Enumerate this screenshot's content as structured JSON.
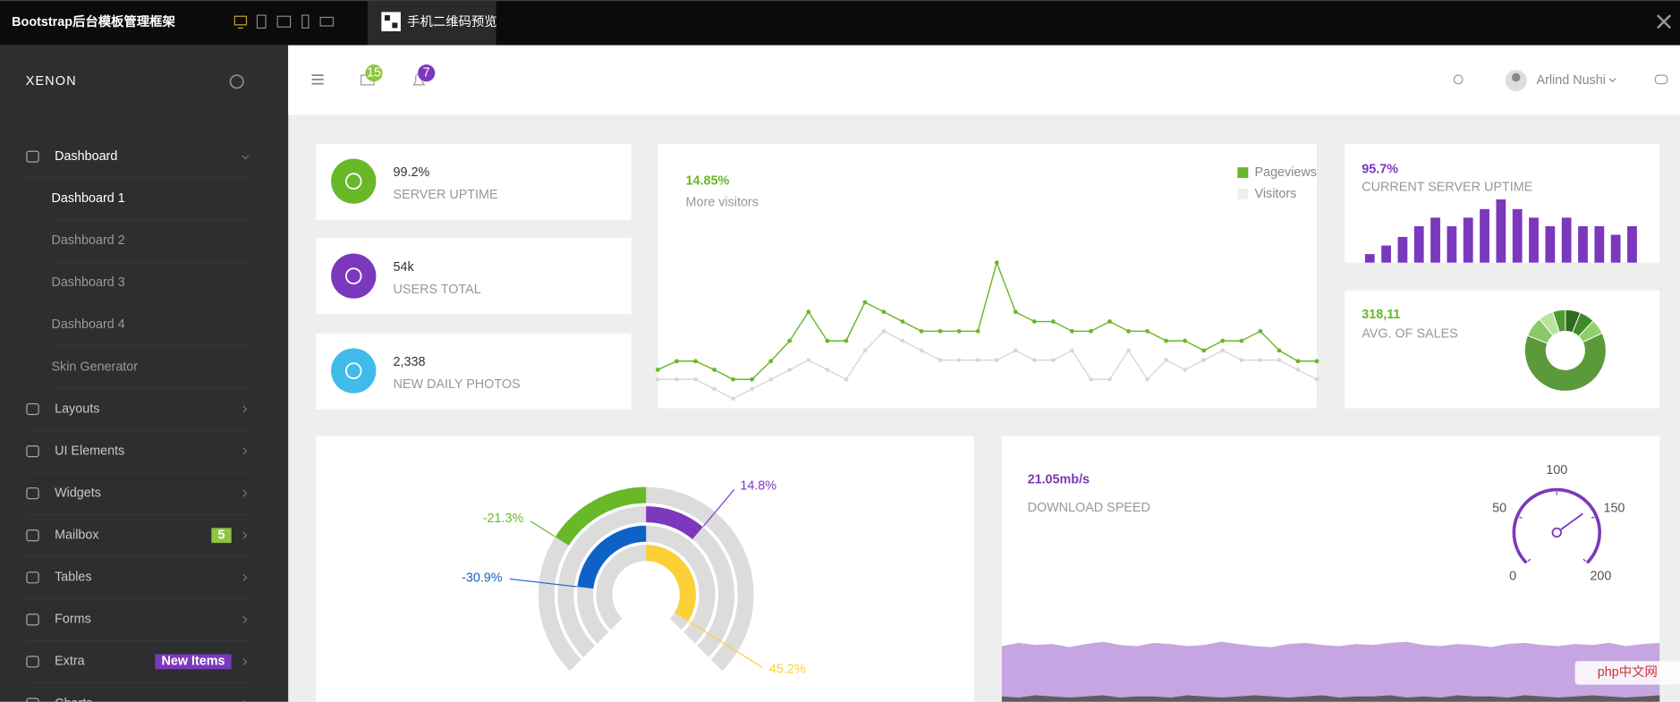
{
  "topbar": {
    "title": "Bootstrap后台模板管理框架",
    "qr_tab": "手机二维码预览"
  },
  "sidebar": {
    "logo": "XENON",
    "menu": [
      {
        "label": "Dashboard",
        "children": [
          "Dashboard 1",
          "Dashboard 2",
          "Dashboard 3",
          "Dashboard 4",
          "Skin Generator"
        ]
      },
      {
        "label": "Layouts"
      },
      {
        "label": "UI Elements"
      },
      {
        "label": "Widgets"
      },
      {
        "label": "Mailbox",
        "badge": 5,
        "badge_color": "#8dc63f"
      },
      {
        "label": "Tables"
      },
      {
        "label": "Forms"
      },
      {
        "label": "Extra",
        "badge": "New Items",
        "badge_color": "#7c38bc"
      },
      {
        "label": "Charts"
      }
    ]
  },
  "header": {
    "mail_badge": 15,
    "bell_badge": 7,
    "user": "Arlind Nushi"
  },
  "stats": [
    {
      "value": "99.2%",
      "label": "SERVER UPTIME",
      "color": "#68b828"
    },
    {
      "value": "54k",
      "label": "USERS TOTAL",
      "color": "#7c38bc"
    },
    {
      "value": "2,338",
      "label": "NEW DAILY PHOTOS",
      "color": "#40bbea"
    }
  ],
  "visitors_chart": {
    "type": "line",
    "title": "14.85%",
    "subtitle": "More visitors",
    "ylim": [
      0,
      150
    ],
    "series": [
      {
        "name": "Pageviews",
        "color": "#68b828",
        "values": [
          36,
          44,
          44,
          36,
          27,
          27,
          44,
          63,
          90,
          63,
          63,
          99,
          90,
          81,
          72,
          72,
          72,
          72,
          136,
          90,
          81,
          81,
          72,
          72,
          81,
          72,
          72,
          63,
          63,
          54,
          63,
          63,
          72,
          54,
          44,
          44
        ]
      },
      {
        "name": "Visitors",
        "color": "#d8d8d8",
        "values": [
          27,
          27,
          27,
          18,
          9,
          18,
          27,
          36,
          45,
          36,
          27,
          54,
          72,
          63,
          54,
          45,
          45,
          45,
          45,
          54,
          45,
          45,
          54,
          27,
          27,
          54,
          27,
          45,
          36,
          45,
          54,
          45,
          45,
          45,
          36,
          27
        ]
      }
    ]
  },
  "uptime_chart": {
    "type": "bar",
    "title": "95.7%",
    "subtitle": "CURRENT SERVER UPTIME",
    "color": "#7c38bc",
    "ylim": [
      0,
      70
    ],
    "values": [
      8,
      16,
      24,
      34,
      42,
      34,
      42,
      50,
      59,
      50,
      42,
      34,
      42,
      34,
      34,
      26,
      34
    ]
  },
  "sales_chart": {
    "type": "pie",
    "title": "318,11",
    "subtitle": "AVG. OF SALES",
    "values": [
      6,
      6,
      6,
      63,
      8,
      6,
      5
    ],
    "colors": [
      "#2e6b1f",
      "#3f8a2a",
      "#8fd06b",
      "#5a9a3a",
      "#8bc868",
      "#b9e49b",
      "#4f9a30"
    ]
  },
  "radial_chart": {
    "type": "radial",
    "ylim": [
      0,
      100
    ],
    "values": [
      -21.3,
      14.8,
      -30.9,
      45.2
    ],
    "value_labels": [
      "-21.3%",
      "14.8%",
      "-30.9%",
      "45.2%"
    ],
    "colors": [
      "#68b828",
      "#7c38bc",
      "#0e62c7",
      "#fcd036"
    ]
  },
  "speed_chart": {
    "type": "gauge",
    "title": "21.05mb/s",
    "subtitle": "DOWNLOAD SPEED",
    "color": "#7c38bc",
    "value": 140,
    "ylim": [
      0,
      200
    ],
    "yticks": [
      0,
      50,
      100,
      150,
      200
    ]
  },
  "speed_area": {
    "type": "area",
    "ylim": [
      0,
      60
    ],
    "series": [
      {
        "color": "#c5a6e2",
        "values": [
          52,
          55,
          53,
          54,
          51,
          54,
          56,
          53,
          52,
          55,
          54,
          52,
          53,
          56,
          54,
          52,
          51,
          54,
          55,
          53,
          52,
          54,
          53,
          55,
          56,
          53,
          52,
          54,
          53,
          51,
          54,
          55,
          53,
          52,
          54,
          53,
          55,
          52,
          54,
          55
        ]
      },
      {
        "color": "#5d5d5d",
        "values": [
          5,
          4,
          6,
          5,
          4,
          5,
          6,
          4,
          5,
          5,
          4,
          6,
          5,
          4,
          5,
          6,
          5,
          4,
          5,
          6,
          4,
          5,
          5,
          6,
          4,
          5,
          4,
          6,
          5,
          5,
          4,
          6,
          5,
          4,
          5,
          6,
          5,
          4,
          5,
          6
        ]
      }
    ]
  },
  "watermark": "php中文网"
}
